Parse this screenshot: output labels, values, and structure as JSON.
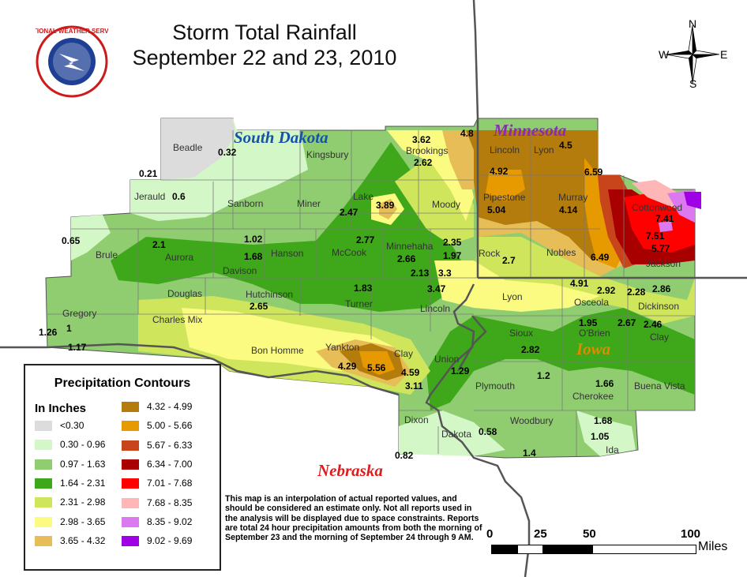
{
  "title": {
    "line1": "Storm Total Rainfall",
    "line2": "September 22 and 23, 2010"
  },
  "states": {
    "south_dakota": "South Dakota",
    "minnesota": "Minnesota",
    "iowa": "Iowa",
    "nebraska": "Nebraska"
  },
  "compass": {
    "n": "N",
    "s": "S",
    "e": "E",
    "w": "W"
  },
  "logo": {
    "text": "NATIONAL WEATHER SERVICE"
  },
  "counties": {
    "beadle": "Beadle",
    "kingsbury": "Kingsbury",
    "brookings": "Brookings",
    "jerauld": "Jerauld",
    "sanborn": "Sanborn",
    "miner": "Miner",
    "lake": "Lake",
    "moody": "Moody",
    "brule": "Brule",
    "aurora": "Aurora",
    "davison": "Davison",
    "hanson": "Hanson",
    "mccook": "McCook",
    "minnehaha": "Minnehaha",
    "douglas": "Douglas",
    "hutchinson": "Hutchinson",
    "turner": "Turner",
    "lincoln_sd": "Lincoln",
    "gregory": "Gregory",
    "charles_mix": "Charles Mix",
    "bon_homme": "Bon Homme",
    "yankton": "Yankton",
    "clay_sd": "Clay",
    "union": "Union",
    "dixon": "Dixon",
    "dakota": "Dakota",
    "lincoln_mn": "Lincoln",
    "lyon_mn": "Lyon",
    "pipestone": "Pipestone",
    "murray": "Murray",
    "cottonwood": "Cottonwood",
    "rock": "Rock",
    "nobles": "Nobles",
    "jackson": "Jackson",
    "lyon_ia": "Lyon",
    "osceola": "Osceola",
    "dickinson": "Dickinson",
    "sioux": "Sioux",
    "obrien": "O'Brien",
    "clay_ia": "Clay",
    "plymouth": "Plymouth",
    "cherokee": "Cherokee",
    "buena_vista": "Buena Vista",
    "woodbury": "Woodbury",
    "ida": "Ida"
  },
  "values": {
    "v032": "0.32",
    "v021": "0.21",
    "v06": "0.6",
    "v362": "3.62",
    "v48": "4.8",
    "v262": "2.62",
    "v492": "4.92",
    "v45": "4.5",
    "v659": "6.59",
    "v504": "5.04",
    "v414": "4.14",
    "v247": "2.47",
    "v389": "3.89",
    "v065": "0.65",
    "v21": "2.1",
    "v102": "1.02",
    "v168": "1.68",
    "v277": "2.77",
    "v266": "2.66",
    "v235": "2.35",
    "v197": "1.97",
    "v27": "2.7",
    "v741": "7.41",
    "v751": "7.51",
    "v577": "5.77",
    "v649": "6.49",
    "v213": "2.13",
    "v333": "3.3",
    "v347": "3.47",
    "v183": "1.83",
    "v265": "2.65",
    "v491": "4.91",
    "v292": "2.92",
    "v228": "2.28",
    "v286": "2.86",
    "v126": "1.26",
    "v1": "1",
    "v117": "1.17",
    "v195": "1.95",
    "v267": "2.67",
    "v246": "2.46",
    "v282": "2.82",
    "v429": "4.29",
    "v556": "5.56",
    "v459": "4.59",
    "v311": "3.11",
    "v129": "1.29",
    "v12": "1.2",
    "v166": "1.66",
    "v168b": "1.68",
    "v058": "0.58",
    "v105": "1.05",
    "v14": "1.4",
    "v082": "0.82"
  },
  "legend": {
    "title": "Precipitation Contours",
    "units": "In Inches",
    "items": [
      {
        "label": "<0.30",
        "color": "#dcdcdc"
      },
      {
        "label": "0.30 - 0.96",
        "color": "#d4f7c8"
      },
      {
        "label": "0.97 - 1.63",
        "color": "#8fcd70"
      },
      {
        "label": "1.64 - 2.31",
        "color": "#3ea71a"
      },
      {
        "label": "2.31 - 2.98",
        "color": "#cfe65c"
      },
      {
        "label": "2.98 - 3.65",
        "color": "#fbfb82"
      },
      {
        "label": "3.65 - 4.32",
        "color": "#e7bd57"
      },
      {
        "label": "4.32 - 4.99",
        "color": "#b47b0d"
      },
      {
        "label": "5.00 - 5.66",
        "color": "#e69a00"
      },
      {
        "label": "5.67 - 6.33",
        "color": "#c8441b"
      },
      {
        "label": "6.34 - 7.00",
        "color": "#a80000"
      },
      {
        "label": "7.01 - 7.68",
        "color": "#ff0000"
      },
      {
        "label": "7.68 - 8.35",
        "color": "#ffb6b6"
      },
      {
        "label": "8.35 - 9.02",
        "color": "#dc78f0"
      },
      {
        "label": "9.02 - 9.69",
        "color": "#a000e6"
      }
    ]
  },
  "note": "This map is an interpolation of actual reported values, and should be considered an estimate only. Not all reports used in the analysis will be displayed due to space constraints. Reports are total 24 hour precipitation amounts from both the morning of September 23 and the morning of September 24 through 9 AM.",
  "scale": {
    "t0": "0",
    "t25": "25",
    "t50": "50",
    "t100": "100",
    "unit": "Miles"
  }
}
